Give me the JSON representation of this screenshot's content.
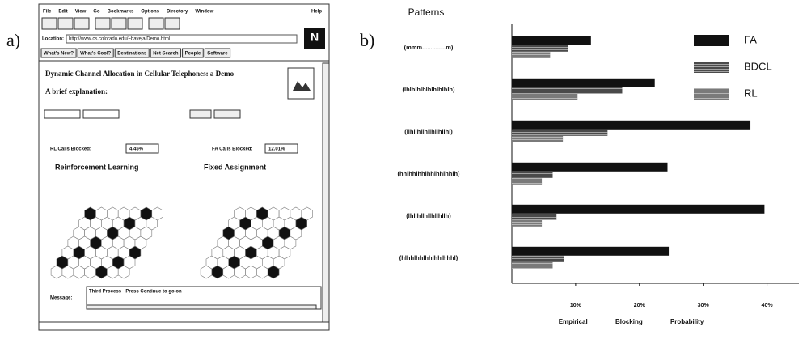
{
  "panel_labels": [
    "a)",
    "b)"
  ],
  "panel_a": {
    "menu": [
      "File",
      "Edit",
      "View",
      "Go",
      "Bookmarks",
      "Options",
      "Directory",
      "Window"
    ],
    "help": "Help",
    "location_label": "Location:",
    "location_url": "http://www.cs.colorado.edu/~baveja/Demo.html",
    "buttons": [
      "What's New?",
      "What's Cool?",
      "Destinations",
      "Net Search",
      "People",
      "Software"
    ],
    "heading": "Dynamic Channel Allocation in Cellular Telephones: a Demo",
    "subheading": "A brief explanation:",
    "rl_blocked_label": "RL Calls Blocked:",
    "rl_blocked_value": "4.45%",
    "fa_blocked_label": "FA Calls Blocked:",
    "fa_blocked_value": "12.01%",
    "rl_title": "Reinforcement Learning",
    "fa_title": "Fixed Assignment",
    "message_label": "Message:",
    "message_text": "Third Process - Press Continue to go on"
  },
  "chart_data": {
    "type": "hbar",
    "title": "Patterns",
    "xlabel": "Empirical Blocking Probability",
    "categories": [
      "(mmm..............m)",
      "(lhlhlhlhlhlhlhlhlh)",
      "(llhllhllhllhllhllhl)",
      "(hhlhhlhhlhhlhhlhhlh)",
      "(lhllhllhllhllhllh)",
      "(hlhhlhhlhhlhhlhhhl)"
    ],
    "series": [
      {
        "name": "FA",
        "color": "#111111",
        "values": [
          12.4,
          22.4,
          37.4,
          24.4,
          39.6,
          24.6
        ]
      },
      {
        "name": "BDCL",
        "color": "#4a4a4a",
        "values": [
          8.8,
          17.3,
          15.0,
          6.4,
          7.0,
          8.2
        ]
      },
      {
        "name": "RL",
        "color": "#7a7a7a",
        "values": [
          6.0,
          10.3,
          8.0,
          4.7,
          4.7,
          6.4
        ]
      }
    ],
    "xlim": [
      0,
      45
    ],
    "xticks": [
      {
        "value": 10,
        "label": "10%"
      },
      {
        "value": 20,
        "label": "20%"
      },
      {
        "value": 30,
        "label": "30%"
      },
      {
        "value": 40,
        "label": "40%"
      }
    ],
    "legend": "top-right"
  }
}
